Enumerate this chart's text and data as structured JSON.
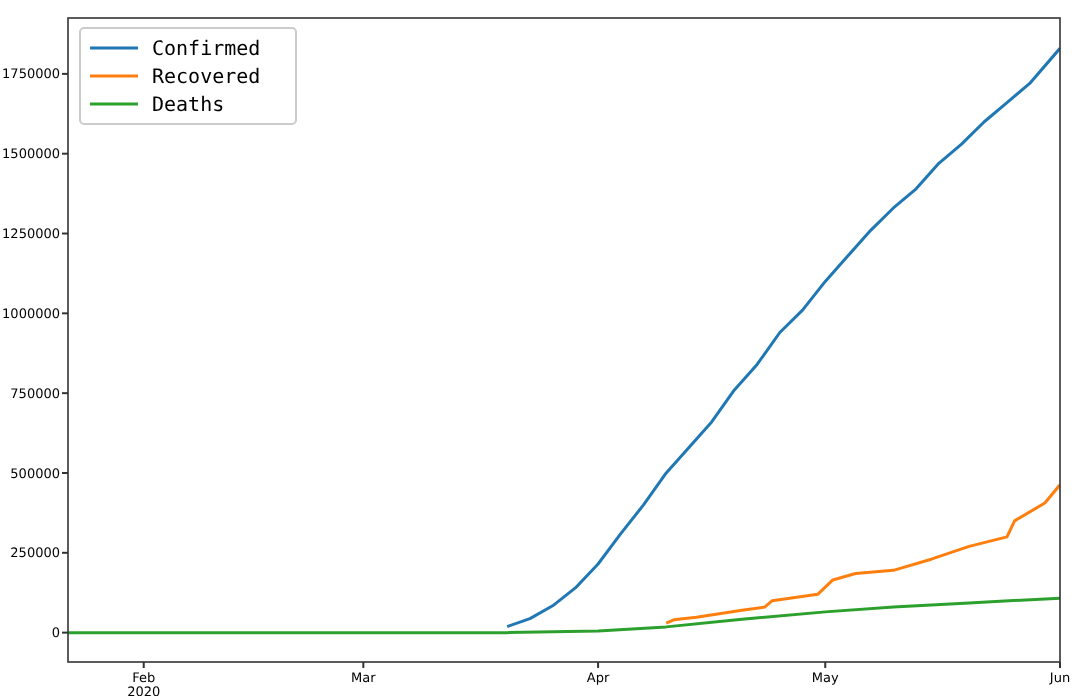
{
  "chart_data": {
    "type": "line",
    "xlim": [
      "2020-01-22",
      "2020-06-01"
    ],
    "ylim": [
      -92000,
      1925000
    ],
    "xticks": [
      {
        "value": "2020-02-01",
        "label": "Feb\n2020"
      },
      {
        "value": "2020-03-01",
        "label": "Mar"
      },
      {
        "value": "2020-04-01",
        "label": "Apr"
      },
      {
        "value": "2020-05-01",
        "label": "May"
      },
      {
        "value": "2020-06-01",
        "label": "Jun"
      }
    ],
    "yticks": [
      0,
      250000,
      500000,
      750000,
      1000000,
      1250000,
      1500000,
      1750000
    ],
    "legend": "top left",
    "grid": false,
    "series": [
      {
        "name": "Confirmed",
        "color": "#1f77b4",
        "x": [
          "2020-03-20",
          "2020-03-23",
          "2020-03-26",
          "2020-03-29",
          "2020-04-01",
          "2020-04-04",
          "2020-04-07",
          "2020-04-10",
          "2020-04-13",
          "2020-04-16",
          "2020-04-19",
          "2020-04-22",
          "2020-04-25",
          "2020-04-28",
          "2020-05-01",
          "2020-05-04",
          "2020-05-07",
          "2020-05-10",
          "2020-05-13",
          "2020-05-16",
          "2020-05-19",
          "2020-05-22",
          "2020-05-25",
          "2020-05-28",
          "2020-06-01"
        ],
        "values": [
          19000,
          44000,
          84000,
          140000,
          215000,
          310000,
          400000,
          500000,
          580000,
          660000,
          760000,
          840000,
          940000,
          1010000,
          1100000,
          1180000,
          1260000,
          1330000,
          1390000,
          1470000,
          1530000,
          1600000,
          1660000,
          1720000,
          1830000
        ]
      },
      {
        "name": "Recovered",
        "color": "#ff7f0e",
        "x": [
          "2020-04-10",
          "2020-04-11",
          "2020-04-14",
          "2020-04-20",
          "2020-04-23",
          "2020-04-24",
          "2020-04-30",
          "2020-05-02",
          "2020-05-05",
          "2020-05-10",
          "2020-05-15",
          "2020-05-20",
          "2020-05-25",
          "2020-05-26",
          "2020-05-30",
          "2020-06-01"
        ],
        "values": [
          30000,
          40000,
          48000,
          70000,
          80000,
          100000,
          120000,
          165000,
          185000,
          195000,
          230000,
          270000,
          300000,
          350000,
          406000,
          463000
        ]
      },
      {
        "name": "Deaths",
        "color": "#2ca02c",
        "x": [
          "2020-01-22",
          "2020-03-01",
          "2020-03-20",
          "2020-04-01",
          "2020-04-10",
          "2020-04-20",
          "2020-05-01",
          "2020-05-10",
          "2020-05-20",
          "2020-06-01"
        ],
        "values": [
          0,
          0,
          0,
          5000,
          18000,
          42000,
          65000,
          80000,
          93000,
          108000
        ]
      }
    ]
  }
}
